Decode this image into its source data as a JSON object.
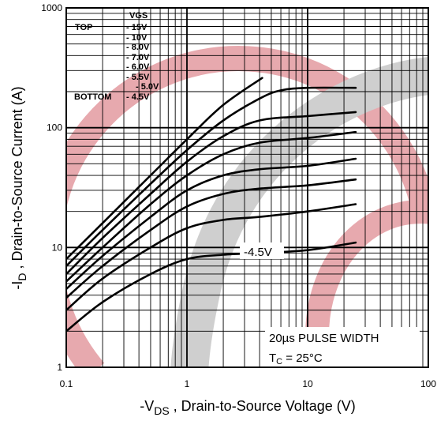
{
  "chart_data": {
    "type": "line",
    "xscale": "log",
    "yscale": "log",
    "xlim": [
      0.1,
      100
    ],
    "ylim": [
      1,
      1000
    ],
    "grid": true,
    "x_ticks": [
      "0.1",
      "1",
      "10",
      "100"
    ],
    "y_ticks": [
      "1",
      "10",
      "100",
      "1000"
    ],
    "xlabel": {
      "pre": "-V",
      "sub": "DS",
      "post": " , Drain-to-Source Voltage (V)"
    },
    "ylabel": {
      "pre": "-I",
      "sub": "D",
      "post": " , Drain-to-Source Current (A)"
    },
    "legend": {
      "header": "VGS",
      "top_label": "TOP",
      "bottom_label": "BOTTOM",
      "items": [
        "- 15V",
        "- 10V",
        "- 8.0V",
        "- 7.0V",
        "- 6.0V",
        "- 5.5V",
        "- 5.0V",
        "- 4.5V"
      ]
    },
    "annotations": {
      "curve_label": "-4.5V",
      "pulse_width": "20µs PULSE WIDTH",
      "temp_pre": "T",
      "temp_sub": "C",
      "temp_post": " = 25°C"
    },
    "series": [
      {
        "name": "- 15V",
        "x": [
          0.1,
          0.2,
          0.5,
          1,
          2,
          4.2
        ],
        "y": [
          8,
          16,
          40,
          80,
          155,
          260
        ]
      },
      {
        "name": "- 10V",
        "x": [
          0.1,
          0.2,
          0.5,
          1,
          2,
          4,
          6,
          10,
          25
        ],
        "y": [
          7,
          14,
          34,
          65,
          115,
          175,
          205,
          215,
          215
        ]
      },
      {
        "name": "- 8.0V",
        "x": [
          0.1,
          0.2,
          0.5,
          1,
          2,
          4,
          10,
          25
        ],
        "y": [
          6,
          12,
          28,
          52,
          85,
          115,
          125,
          135
        ]
      },
      {
        "name": "- 7.0V",
        "x": [
          0.1,
          0.2,
          0.5,
          1,
          2,
          4,
          10,
          25
        ],
        "y": [
          5.2,
          10,
          23,
          40,
          60,
          75,
          82,
          92
        ]
      },
      {
        "name": "- 6.0V",
        "x": [
          0.1,
          0.2,
          0.5,
          1,
          2,
          4,
          10,
          25
        ],
        "y": [
          4.5,
          8.5,
          18,
          30,
          40,
          45,
          48,
          55
        ]
      },
      {
        "name": "- 5.5V",
        "x": [
          0.1,
          0.2,
          0.5,
          1,
          2,
          4,
          10,
          25
        ],
        "y": [
          3.8,
          7,
          14,
          22,
          28,
          31,
          33,
          37
        ]
      },
      {
        "name": "- 5.0V",
        "x": [
          0.1,
          0.2,
          0.5,
          1,
          2,
          4,
          10,
          25
        ],
        "y": [
          3,
          5.5,
          10,
          14.5,
          17,
          18,
          20,
          23
        ]
      },
      {
        "name": "- 4.5V",
        "x": [
          0.1,
          0.2,
          0.5,
          1,
          2,
          4,
          10,
          25
        ],
        "y": [
          2,
          3.5,
          6,
          8,
          8.7,
          9,
          9.5,
          11
        ]
      }
    ]
  }
}
